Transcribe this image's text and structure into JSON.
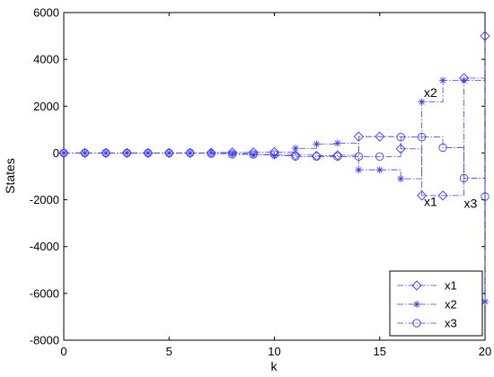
{
  "chart_data": {
    "type": "line",
    "title": "",
    "xlabel": "k",
    "ylabel": "States",
    "xlim": [
      0,
      20
    ],
    "ylim": [
      -8000,
      6000
    ],
    "xticks": [
      0,
      5,
      10,
      15,
      20
    ],
    "yticks": [
      -8000,
      -6000,
      -4000,
      -2000,
      0,
      2000,
      4000,
      6000
    ],
    "grid": false,
    "legend_position": "bottom-right",
    "line_style": "dash-dot stairs",
    "color": "#3d3df5",
    "x": [
      0,
      1,
      2,
      3,
      4,
      5,
      6,
      7,
      8,
      9,
      10,
      11,
      12,
      13,
      14,
      15,
      16,
      17,
      18,
      19,
      20
    ],
    "series": [
      {
        "name": "x1",
        "marker": "diamond",
        "values": [
          0,
          0,
          0,
          0,
          0,
          0,
          0,
          10,
          20,
          30,
          40,
          -90,
          -120,
          -100,
          700,
          700,
          180,
          -1820,
          -1820,
          3200,
          5000
        ]
      },
      {
        "name": "x2",
        "marker": "star",
        "values": [
          0,
          0,
          0,
          0,
          0,
          0,
          0,
          20,
          -30,
          -80,
          -120,
          200,
          380,
          420,
          -720,
          -720,
          -1100,
          2180,
          3100,
          3100,
          -6350
        ]
      },
      {
        "name": "x3",
        "marker": "circle",
        "values": [
          0,
          0,
          0,
          0,
          0,
          0,
          0,
          -30,
          -60,
          -60,
          -60,
          -150,
          -150,
          -150,
          -150,
          -150,
          680,
          680,
          230,
          -1080,
          -1860
        ]
      }
    ],
    "annotations": [
      {
        "text": "x2",
        "x": 17.1,
        "y": 2400
      },
      {
        "text": "x1",
        "x": 17.1,
        "y": -2270
      },
      {
        "text": "x3",
        "x": 19.0,
        "y": -2340
      }
    ]
  }
}
